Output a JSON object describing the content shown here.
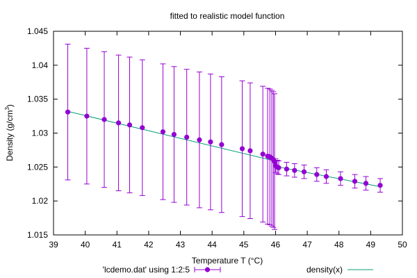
{
  "chart_data": {
    "type": "scatter",
    "title": "fitted to realistic model function",
    "xlabel": "Temperature T (°C)",
    "ylabel_main": "Density (g/cm",
    "ylabel_sup": "3",
    "ylabel_close": ")",
    "xlim": [
      39,
      50
    ],
    "ylim": [
      1.015,
      1.045
    ],
    "xticks": [
      "39",
      "40",
      "41",
      "42",
      "43",
      "44",
      "45",
      "46",
      "47",
      "48",
      "49",
      "50"
    ],
    "yticks": [
      "1.015",
      "1.02",
      "1.025",
      "1.03",
      "1.035",
      "1.04",
      "1.045"
    ],
    "grid": false,
    "legend_position": "bottom",
    "series": [
      {
        "name": "'lcdemo.dat' using 1:2:5",
        "kind": "points-with-errorbars",
        "color": "#9400d3",
        "points": [
          {
            "x": 39.45,
            "y": 1.0331,
            "err": 0.01
          },
          {
            "x": 40.05,
            "y": 1.0325,
            "err": 0.01
          },
          {
            "x": 40.6,
            "y": 1.032,
            "err": 0.01
          },
          {
            "x": 41.05,
            "y": 1.0315,
            "err": 0.01
          },
          {
            "x": 41.4,
            "y": 1.0312,
            "err": 0.01
          },
          {
            "x": 41.8,
            "y": 1.0308,
            "err": 0.01
          },
          {
            "x": 42.45,
            "y": 1.0302,
            "err": 0.01
          },
          {
            "x": 42.8,
            "y": 1.0298,
            "err": 0.01
          },
          {
            "x": 43.2,
            "y": 1.0294,
            "err": 0.01
          },
          {
            "x": 43.6,
            "y": 1.029,
            "err": 0.01
          },
          {
            "x": 43.95,
            "y": 1.0287,
            "err": 0.01
          },
          {
            "x": 44.3,
            "y": 1.0283,
            "err": 0.01
          },
          {
            "x": 44.95,
            "y": 1.0277,
            "err": 0.01
          },
          {
            "x": 45.2,
            "y": 1.0274,
            "err": 0.01
          },
          {
            "x": 45.6,
            "y": 1.0269,
            "err": 0.01
          },
          {
            "x": 45.75,
            "y": 1.0266,
            "err": 0.01
          },
          {
            "x": 45.82,
            "y": 1.0265,
            "err": 0.01
          },
          {
            "x": 45.88,
            "y": 1.0263,
            "err": 0.01
          },
          {
            "x": 45.93,
            "y": 1.0261,
            "err": 0.01
          },
          {
            "x": 45.97,
            "y": 1.0258,
            "err": 0.01
          },
          {
            "x": 46.0,
            "y": 1.0252,
            "err": 0.001
          },
          {
            "x": 46.05,
            "y": 1.025,
            "err": 0.001
          },
          {
            "x": 46.1,
            "y": 1.0249,
            "err": 0.001
          },
          {
            "x": 46.35,
            "y": 1.0247,
            "err": 0.001
          },
          {
            "x": 46.6,
            "y": 1.0245,
            "err": 0.001
          },
          {
            "x": 46.9,
            "y": 1.0243,
            "err": 0.001
          },
          {
            "x": 47.3,
            "y": 1.0239,
            "err": 0.001
          },
          {
            "x": 47.6,
            "y": 1.0236,
            "err": 0.001
          },
          {
            "x": 48.05,
            "y": 1.0233,
            "err": 0.001
          },
          {
            "x": 48.5,
            "y": 1.0229,
            "err": 0.001
          },
          {
            "x": 48.85,
            "y": 1.0226,
            "err": 0.001
          },
          {
            "x": 49.3,
            "y": 1.0223,
            "err": 0.001
          }
        ]
      },
      {
        "name": "density(x)",
        "kind": "line",
        "color": "#009e73",
        "x": [
          39.45,
          45.97,
          46.0,
          49.3
        ],
        "y": [
          1.0332,
          1.0259,
          1.0251,
          1.0221
        ]
      }
    ]
  }
}
